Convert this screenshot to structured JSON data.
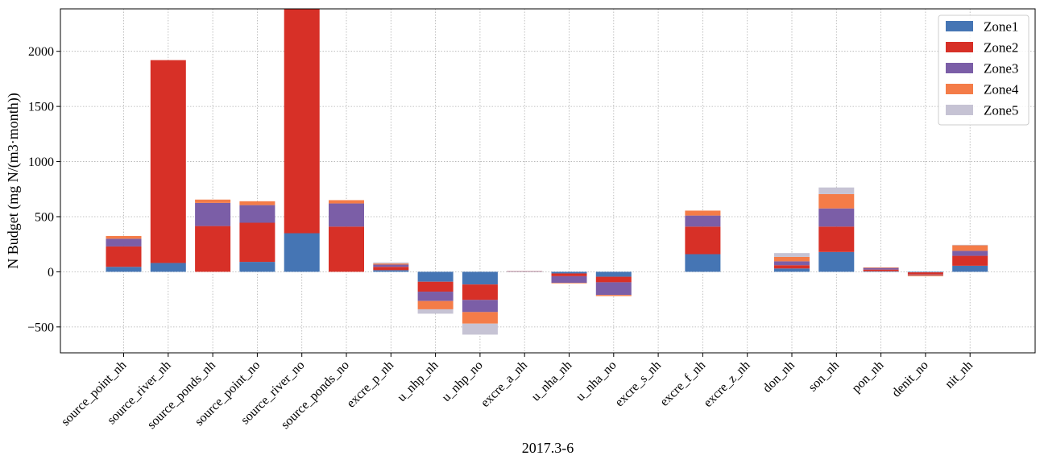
{
  "chart_data": {
    "type": "bar",
    "stacked": true,
    "xlabel": "2017.3-6",
    "ylabel": "N Budget (mg N/(m3·month))",
    "ylim": [
      -735,
      2385
    ],
    "yticks": [
      -500,
      0,
      500,
      1000,
      1500,
      2000
    ],
    "ytick_labels": [
      "−500",
      "0",
      "500",
      "1000",
      "1500",
      "2000"
    ],
    "grid": true,
    "legend_position": "top-right",
    "categories": [
      "source_point_nh",
      "source_river_nh",
      "source_ponds_nh",
      "source_point_no",
      "source_river_no",
      "source_ponds_no",
      "excre_p_nh",
      "u_nhp_nh",
      "u_nhp_no",
      "excre_a_nh",
      "u_nha_nh",
      "u_nha_no",
      "excre_s_nh",
      "excre_f_nh",
      "excre_z_nh",
      "don_nh",
      "son_nh",
      "pon_nh",
      "denit_no",
      "nit_nh"
    ],
    "series": [
      {
        "name": "Zone1",
        "color": "#4575b4",
        "values": [
          45,
          80,
          0,
          90,
          350,
          0,
          15,
          -90,
          -115,
          2,
          -15,
          -45,
          0,
          160,
          0,
          30,
          180,
          5,
          -5,
          55
        ]
      },
      {
        "name": "Zone2",
        "color": "#d73027",
        "values": [
          185,
          1840,
          415,
          355,
          2035,
          410,
          30,
          -90,
          -140,
          2,
          -25,
          -50,
          0,
          250,
          0,
          30,
          230,
          15,
          -20,
          90
        ]
      },
      {
        "name": "Zone3",
        "color": "#7b5ea7",
        "values": [
          70,
          0,
          210,
          160,
          0,
          210,
          20,
          -85,
          -110,
          2,
          -60,
          -115,
          0,
          100,
          0,
          35,
          165,
          15,
          -5,
          45
        ]
      },
      {
        "name": "Zone4",
        "color": "#f47c48",
        "values": [
          25,
          0,
          30,
          35,
          0,
          30,
          10,
          -75,
          -105,
          1,
          -5,
          -10,
          0,
          45,
          0,
          40,
          130,
          5,
          -10,
          50
        ]
      },
      {
        "name": "Zone5",
        "color": "#c6c3d4",
        "values": [
          0,
          0,
          0,
          0,
          0,
          0,
          10,
          -40,
          -100,
          0,
          0,
          0,
          0,
          0,
          0,
          35,
          60,
          0,
          0,
          5
        ]
      }
    ]
  }
}
